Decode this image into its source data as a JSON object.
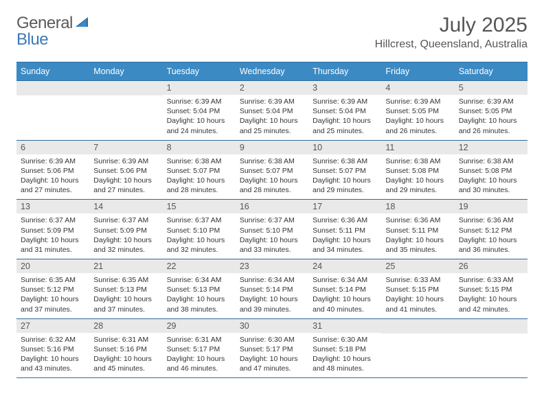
{
  "logo": {
    "general": "General",
    "blue": "Blue"
  },
  "title": "July 2025",
  "location": "Hillcrest, Queensland, Australia",
  "colors": {
    "header_bg": "#3b8ac4",
    "header_border": "#2e6a9e",
    "daynum_bg": "#e9e9e9",
    "text_muted": "#555555",
    "logo_gray": "#5a5a5a",
    "logo_blue": "#3a7ab8"
  },
  "weekdays": [
    "Sunday",
    "Monday",
    "Tuesday",
    "Wednesday",
    "Thursday",
    "Friday",
    "Saturday"
  ],
  "weeks": [
    [
      {
        "n": "",
        "sr": "",
        "ss": "",
        "dl": ""
      },
      {
        "n": "",
        "sr": "",
        "ss": "",
        "dl": ""
      },
      {
        "n": "1",
        "sr": "6:39 AM",
        "ss": "5:04 PM",
        "dl": "10 hours and 24 minutes."
      },
      {
        "n": "2",
        "sr": "6:39 AM",
        "ss": "5:04 PM",
        "dl": "10 hours and 25 minutes."
      },
      {
        "n": "3",
        "sr": "6:39 AM",
        "ss": "5:04 PM",
        "dl": "10 hours and 25 minutes."
      },
      {
        "n": "4",
        "sr": "6:39 AM",
        "ss": "5:05 PM",
        "dl": "10 hours and 26 minutes."
      },
      {
        "n": "5",
        "sr": "6:39 AM",
        "ss": "5:05 PM",
        "dl": "10 hours and 26 minutes."
      }
    ],
    [
      {
        "n": "6",
        "sr": "6:39 AM",
        "ss": "5:06 PM",
        "dl": "10 hours and 27 minutes."
      },
      {
        "n": "7",
        "sr": "6:39 AM",
        "ss": "5:06 PM",
        "dl": "10 hours and 27 minutes."
      },
      {
        "n": "8",
        "sr": "6:38 AM",
        "ss": "5:07 PM",
        "dl": "10 hours and 28 minutes."
      },
      {
        "n": "9",
        "sr": "6:38 AM",
        "ss": "5:07 PM",
        "dl": "10 hours and 28 minutes."
      },
      {
        "n": "10",
        "sr": "6:38 AM",
        "ss": "5:07 PM",
        "dl": "10 hours and 29 minutes."
      },
      {
        "n": "11",
        "sr": "6:38 AM",
        "ss": "5:08 PM",
        "dl": "10 hours and 29 minutes."
      },
      {
        "n": "12",
        "sr": "6:38 AM",
        "ss": "5:08 PM",
        "dl": "10 hours and 30 minutes."
      }
    ],
    [
      {
        "n": "13",
        "sr": "6:37 AM",
        "ss": "5:09 PM",
        "dl": "10 hours and 31 minutes."
      },
      {
        "n": "14",
        "sr": "6:37 AM",
        "ss": "5:09 PM",
        "dl": "10 hours and 32 minutes."
      },
      {
        "n": "15",
        "sr": "6:37 AM",
        "ss": "5:10 PM",
        "dl": "10 hours and 32 minutes."
      },
      {
        "n": "16",
        "sr": "6:37 AM",
        "ss": "5:10 PM",
        "dl": "10 hours and 33 minutes."
      },
      {
        "n": "17",
        "sr": "6:36 AM",
        "ss": "5:11 PM",
        "dl": "10 hours and 34 minutes."
      },
      {
        "n": "18",
        "sr": "6:36 AM",
        "ss": "5:11 PM",
        "dl": "10 hours and 35 minutes."
      },
      {
        "n": "19",
        "sr": "6:36 AM",
        "ss": "5:12 PM",
        "dl": "10 hours and 36 minutes."
      }
    ],
    [
      {
        "n": "20",
        "sr": "6:35 AM",
        "ss": "5:12 PM",
        "dl": "10 hours and 37 minutes."
      },
      {
        "n": "21",
        "sr": "6:35 AM",
        "ss": "5:13 PM",
        "dl": "10 hours and 37 minutes."
      },
      {
        "n": "22",
        "sr": "6:34 AM",
        "ss": "5:13 PM",
        "dl": "10 hours and 38 minutes."
      },
      {
        "n": "23",
        "sr": "6:34 AM",
        "ss": "5:14 PM",
        "dl": "10 hours and 39 minutes."
      },
      {
        "n": "24",
        "sr": "6:34 AM",
        "ss": "5:14 PM",
        "dl": "10 hours and 40 minutes."
      },
      {
        "n": "25",
        "sr": "6:33 AM",
        "ss": "5:15 PM",
        "dl": "10 hours and 41 minutes."
      },
      {
        "n": "26",
        "sr": "6:33 AM",
        "ss": "5:15 PM",
        "dl": "10 hours and 42 minutes."
      }
    ],
    [
      {
        "n": "27",
        "sr": "6:32 AM",
        "ss": "5:16 PM",
        "dl": "10 hours and 43 minutes."
      },
      {
        "n": "28",
        "sr": "6:31 AM",
        "ss": "5:16 PM",
        "dl": "10 hours and 45 minutes."
      },
      {
        "n": "29",
        "sr": "6:31 AM",
        "ss": "5:17 PM",
        "dl": "10 hours and 46 minutes."
      },
      {
        "n": "30",
        "sr": "6:30 AM",
        "ss": "5:17 PM",
        "dl": "10 hours and 47 minutes."
      },
      {
        "n": "31",
        "sr": "6:30 AM",
        "ss": "5:18 PM",
        "dl": "10 hours and 48 minutes."
      },
      {
        "n": "",
        "sr": "",
        "ss": "",
        "dl": ""
      },
      {
        "n": "",
        "sr": "",
        "ss": "",
        "dl": ""
      }
    ]
  ],
  "labels": {
    "sunrise": "Sunrise:",
    "sunset": "Sunset:",
    "daylight": "Daylight:"
  }
}
